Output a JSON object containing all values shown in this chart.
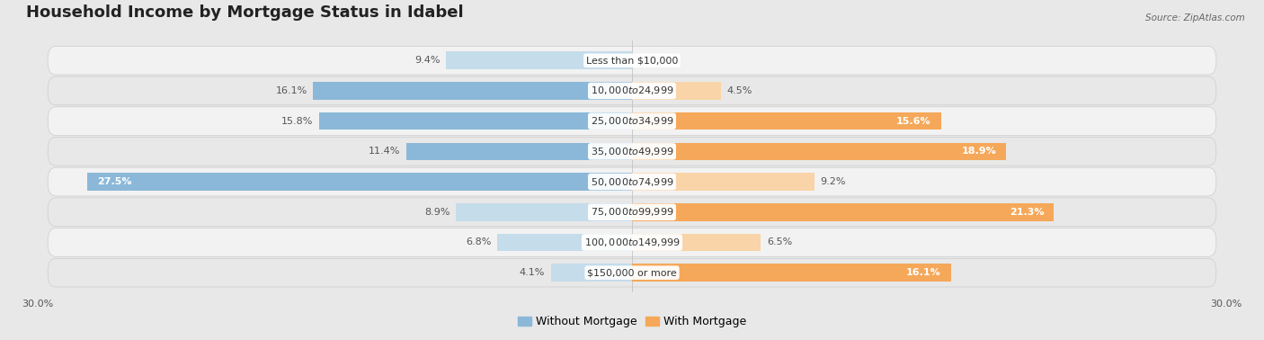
{
  "title": "Household Income by Mortgage Status in Idabel",
  "source": "Source: ZipAtlas.com",
  "categories": [
    "Less than $10,000",
    "$10,000 to $24,999",
    "$25,000 to $34,999",
    "$35,000 to $49,999",
    "$50,000 to $74,999",
    "$75,000 to $99,999",
    "$100,000 to $149,999",
    "$150,000 or more"
  ],
  "without_mortgage": [
    9.4,
    16.1,
    15.8,
    11.4,
    27.5,
    8.9,
    6.8,
    4.1
  ],
  "with_mortgage": [
    0.0,
    4.5,
    15.6,
    18.9,
    9.2,
    21.3,
    6.5,
    16.1
  ],
  "without_mortgage_color": "#8bb8d8",
  "without_mortgage_color_light": "#c5dcea",
  "with_mortgage_color": "#f5a85a",
  "with_mortgage_color_light": "#f9d4a8",
  "bar_height": 0.58,
  "xlim": [
    -30,
    30
  ],
  "background_color": "#e8e8e8",
  "row_bg_color_even": "#f2f2f2",
  "row_bg_color_odd": "#e8e8e8",
  "title_fontsize": 13,
  "label_fontsize": 8,
  "value_fontsize": 8,
  "legend_fontsize": 9,
  "white_text_threshold_blue": 20,
  "white_text_threshold_orange": 15
}
